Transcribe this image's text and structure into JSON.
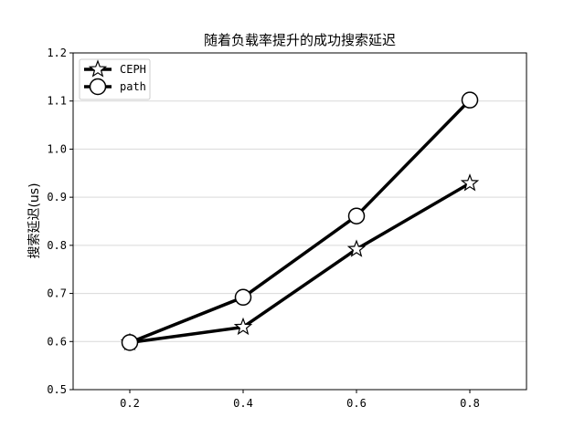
{
  "chart_data": {
    "type": "line",
    "title": "随着负载率提升的成功搜索延迟",
    "xlabel": "",
    "ylabel": "搜索延迟(us)",
    "x": [
      0.2,
      0.4,
      0.6,
      0.8
    ],
    "xlim": [
      0.1,
      0.9
    ],
    "ylim": [
      0.5,
      1.2
    ],
    "xticks": [
      0.2,
      0.4,
      0.6,
      0.8
    ],
    "xtick_labels": [
      "0.2",
      "0.4",
      "0.6",
      "0.8"
    ],
    "yticks": [
      0.5,
      0.6,
      0.7,
      0.8,
      0.9,
      1.0,
      1.1,
      1.2
    ],
    "ytick_labels": [
      "0.5",
      "0.6",
      "0.7",
      "0.8",
      "0.9",
      "1.0",
      "1.1",
      "1.2"
    ],
    "grid": "horizontal",
    "legend_position": "top-left",
    "series": [
      {
        "name": "CEPH",
        "marker": "star",
        "color": "#000000",
        "values": [
          0.598,
          0.63,
          0.792,
          0.929
        ]
      },
      {
        "name": "path",
        "marker": "circle",
        "color": "#000000",
        "values": [
          0.598,
          0.692,
          0.861,
          1.102
        ]
      }
    ]
  }
}
